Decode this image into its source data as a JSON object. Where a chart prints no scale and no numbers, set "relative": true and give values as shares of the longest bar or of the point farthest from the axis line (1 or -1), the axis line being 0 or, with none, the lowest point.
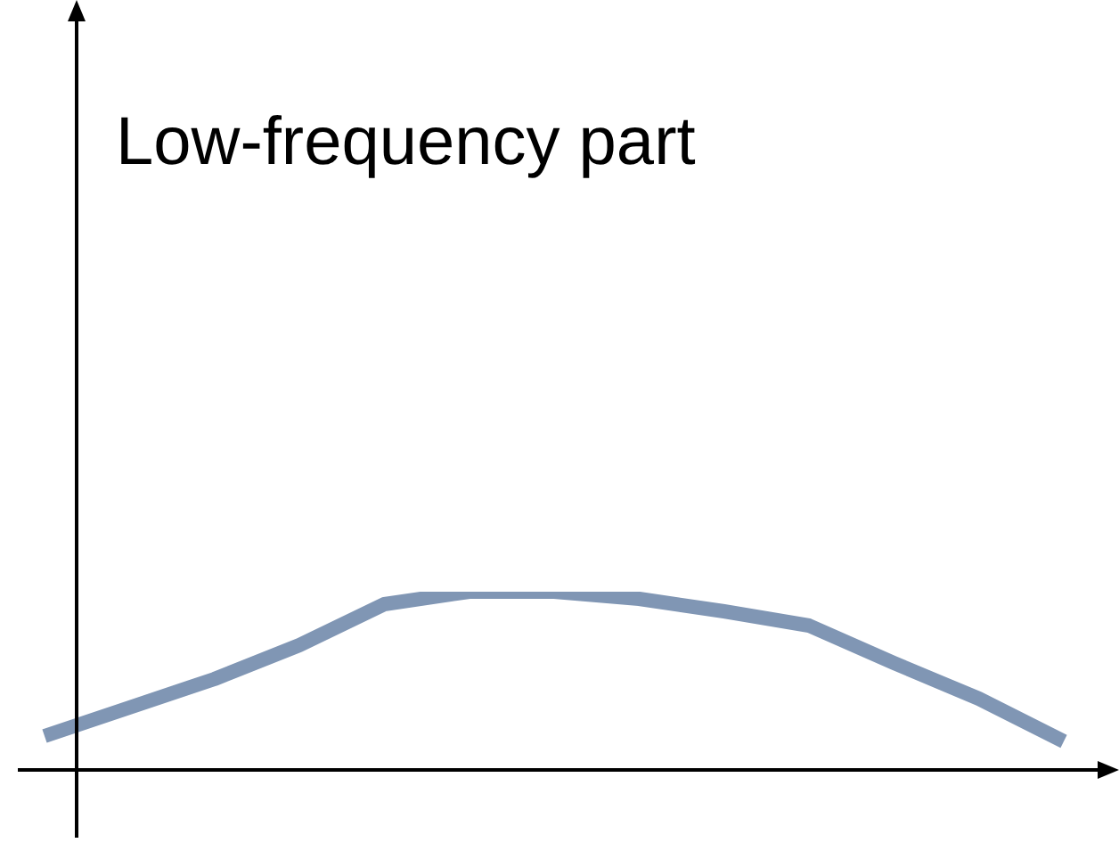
{
  "chart_data": {
    "type": "line",
    "title": "Low-frequency part",
    "relative": true,
    "categories": [
      null,
      null,
      null,
      null,
      null,
      null,
      null,
      null,
      null,
      null,
      null,
      null,
      null
    ],
    "series": [
      {
        "color": "#8096b4",
        "values": [
          0.19,
          0.35,
          0.51,
          0.7,
          0.93,
          1,
          1,
          0.96,
          0.89,
          0.81,
          0.6,
          0.4,
          0.16
        ]
      }
    ]
  }
}
